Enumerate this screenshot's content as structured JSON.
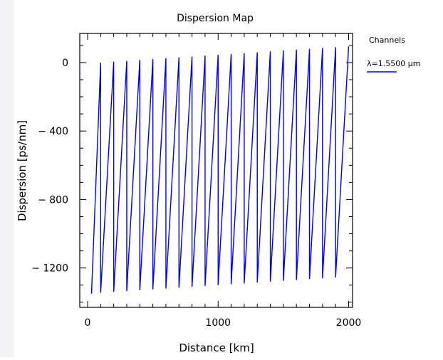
{
  "chart_data": {
    "type": "line",
    "title": "Dispersion Map",
    "xlabel": "Distance [km]",
    "ylabel": "Dispersion [ps/nm]",
    "xlim": [
      -60,
      2030
    ],
    "ylim": [
      -1430,
      170
    ],
    "x_ticks": [
      0,
      1000,
      2000
    ],
    "x_tick_labels": [
      "0",
      "1000",
      "2000"
    ],
    "y_ticks": [
      0,
      -400,
      -800,
      -1200
    ],
    "y_tick_labels": [
      "0",
      "− 400",
      "− 800",
      "− 1200"
    ],
    "legend": {
      "title": "Channels",
      "placement": "right",
      "entries": [
        "λ=1.5500 µm"
      ]
    },
    "series": [
      {
        "name": "λ=1.5500 µm",
        "color": "#0000e6",
        "x": [
          30,
          100,
          100,
          200,
          200,
          300,
          300,
          400,
          400,
          500,
          500,
          600,
          600,
          700,
          700,
          800,
          800,
          900,
          900,
          1000,
          1000,
          1100,
          1100,
          1200,
          1200,
          1300,
          1300,
          1400,
          1400,
          1500,
          1500,
          1600,
          1600,
          1700,
          1700,
          1800,
          1800,
          1900,
          1900,
          2000
        ],
        "y": [
          -1350,
          0,
          -1345,
          5,
          -1340,
          10,
          -1335,
          15,
          -1330,
          20,
          -1325,
          25,
          -1320,
          30,
          -1315,
          35,
          -1310,
          40,
          -1305,
          45,
          -1300,
          50,
          -1295,
          55,
          -1290,
          60,
          -1285,
          65,
          -1280,
          70,
          -1275,
          75,
          -1270,
          80,
          -1265,
          85,
          -1260,
          90,
          -1255,
          95
        ]
      }
    ],
    "grid": false
  }
}
